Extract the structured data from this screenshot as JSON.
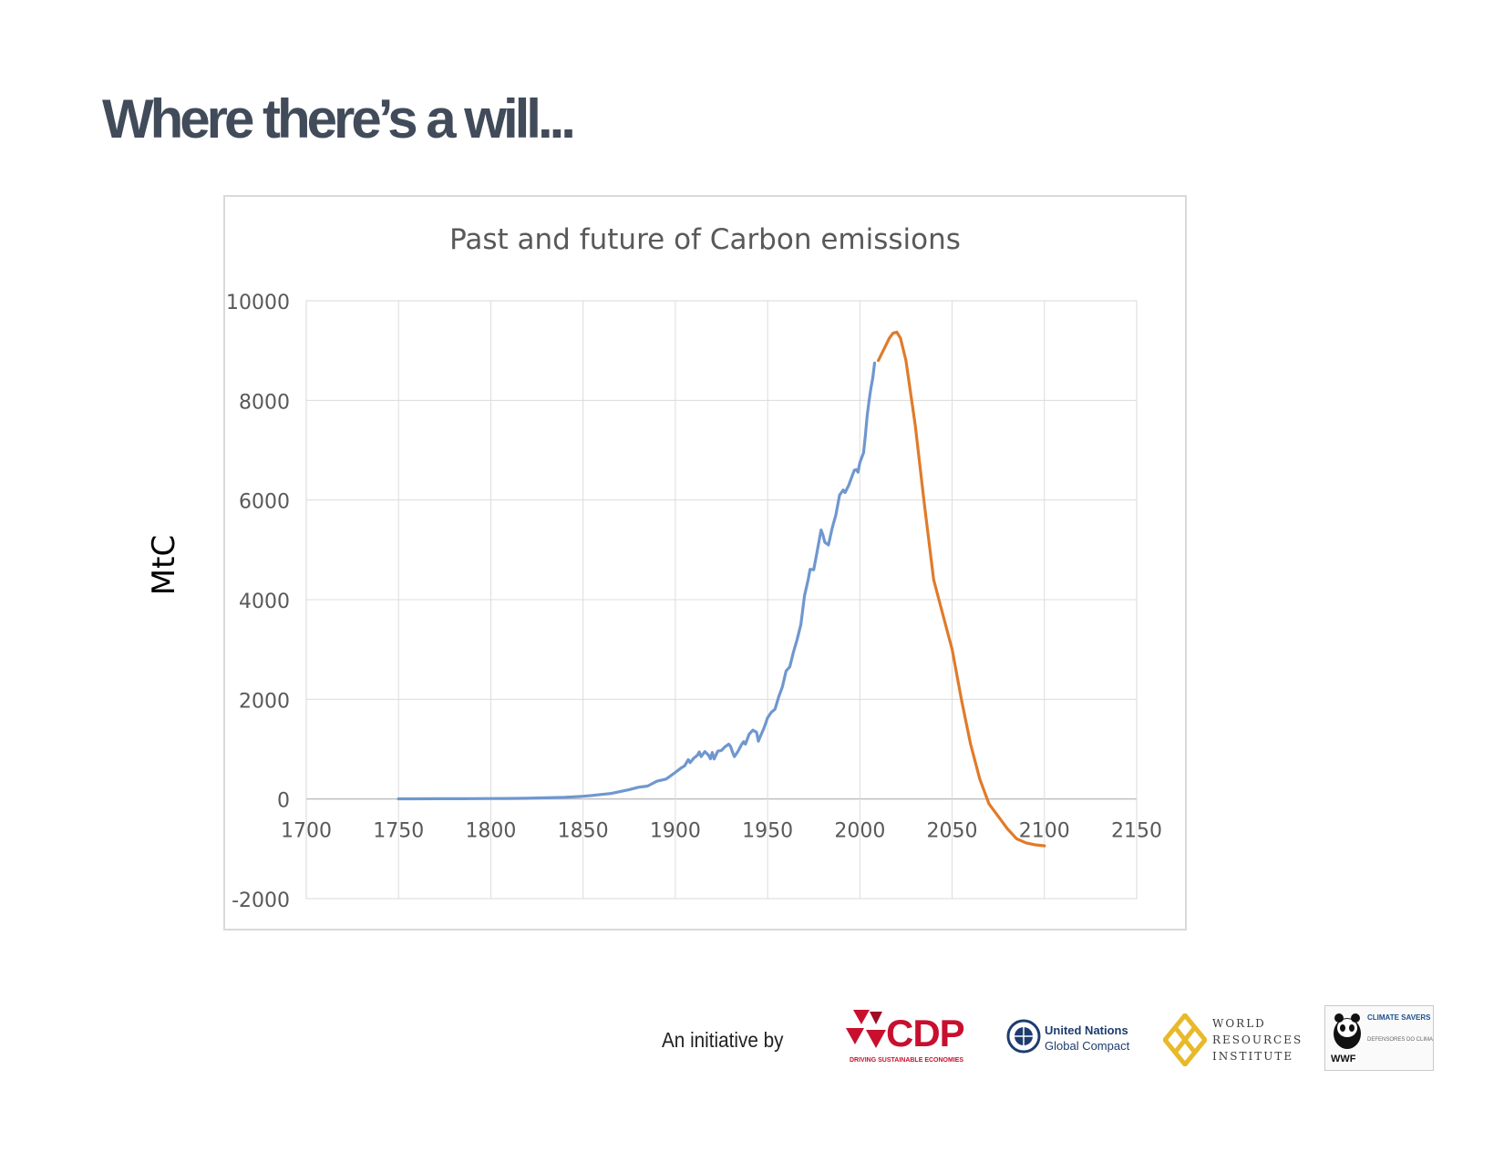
{
  "slide": {
    "title": "Where there’s a will...",
    "footer_label": "An initiative by"
  },
  "chart_data": {
    "type": "line",
    "title": "Past and future of Carbon emissions",
    "xlabel": "",
    "ylabel": "MtC",
    "xlim": [
      1700,
      2150
    ],
    "ylim": [
      -2000,
      10000
    ],
    "x_ticks": [
      1700,
      1750,
      1800,
      1850,
      1900,
      1950,
      2000,
      2050,
      2100,
      2150
    ],
    "y_ticks": [
      -2000,
      0,
      2000,
      4000,
      6000,
      8000,
      10000
    ],
    "grid": true,
    "legend": "none",
    "series": [
      {
        "color": "#6f97cf",
        "points": [
          [
            1750,
            3
          ],
          [
            1760,
            3
          ],
          [
            1770,
            4
          ],
          [
            1780,
            5
          ],
          [
            1790,
            7
          ],
          [
            1800,
            8
          ],
          [
            1810,
            10
          ],
          [
            1820,
            14
          ],
          [
            1830,
            24
          ],
          [
            1840,
            33
          ],
          [
            1850,
            54
          ],
          [
            1855,
            70
          ],
          [
            1860,
            91
          ],
          [
            1865,
            110
          ],
          [
            1870,
            147
          ],
          [
            1875,
            188
          ],
          [
            1880,
            236
          ],
          [
            1885,
            260
          ],
          [
            1890,
            356
          ],
          [
            1895,
            400
          ],
          [
            1900,
            534
          ],
          [
            1903,
            620
          ],
          [
            1905,
            663
          ],
          [
            1907,
            790
          ],
          [
            1908,
            730
          ],
          [
            1910,
            819
          ],
          [
            1912,
            880
          ],
          [
            1913,
            943
          ],
          [
            1914,
            850
          ],
          [
            1916,
            950
          ],
          [
            1918,
            880
          ],
          [
            1919,
            806
          ],
          [
            1920,
            932
          ],
          [
            1921,
            803
          ],
          [
            1923,
            960
          ],
          [
            1925,
            975
          ],
          [
            1927,
            1050
          ],
          [
            1929,
            1100
          ],
          [
            1930,
            1050
          ],
          [
            1931,
            940
          ],
          [
            1932,
            850
          ],
          [
            1934,
            960
          ],
          [
            1936,
            1100
          ],
          [
            1937,
            1150
          ],
          [
            1938,
            1100
          ],
          [
            1940,
            1300
          ],
          [
            1942,
            1380
          ],
          [
            1944,
            1340
          ],
          [
            1945,
            1160
          ],
          [
            1946,
            1250
          ],
          [
            1948,
            1420
          ],
          [
            1950,
            1630
          ],
          [
            1952,
            1740
          ],
          [
            1954,
            1800
          ],
          [
            1956,
            2050
          ],
          [
            1958,
            2250
          ],
          [
            1960,
            2570
          ],
          [
            1962,
            2650
          ],
          [
            1964,
            2950
          ],
          [
            1966,
            3200
          ],
          [
            1968,
            3500
          ],
          [
            1970,
            4080
          ],
          [
            1972,
            4400
          ],
          [
            1973,
            4610
          ],
          [
            1975,
            4600
          ],
          [
            1977,
            5000
          ],
          [
            1979,
            5400
          ],
          [
            1980,
            5300
          ],
          [
            1981,
            5150
          ],
          [
            1983,
            5100
          ],
          [
            1985,
            5440
          ],
          [
            1987,
            5700
          ],
          [
            1989,
            6100
          ],
          [
            1991,
            6200
          ],
          [
            1992,
            6150
          ],
          [
            1994,
            6300
          ],
          [
            1996,
            6500
          ],
          [
            1997,
            6600
          ],
          [
            1998,
            6610
          ],
          [
            1999,
            6560
          ],
          [
            2000,
            6750
          ],
          [
            2002,
            6950
          ],
          [
            2003,
            7300
          ],
          [
            2004,
            7700
          ],
          [
            2005,
            8000
          ],
          [
            2006,
            8250
          ],
          [
            2007,
            8450
          ],
          [
            2008,
            8750
          ]
        ]
      },
      {
        "color": "#e07b2a",
        "points": [
          [
            2010,
            8800
          ],
          [
            2012,
            8950
          ],
          [
            2014,
            9100
          ],
          [
            2016,
            9250
          ],
          [
            2018,
            9350
          ],
          [
            2020,
            9370
          ],
          [
            2022,
            9250
          ],
          [
            2025,
            8800
          ],
          [
            2030,
            7500
          ],
          [
            2035,
            5900
          ],
          [
            2040,
            4400
          ],
          [
            2045,
            3700
          ],
          [
            2050,
            3000
          ],
          [
            2055,
            2000
          ],
          [
            2060,
            1100
          ],
          [
            2065,
            400
          ],
          [
            2070,
            -100
          ],
          [
            2075,
            -350
          ],
          [
            2080,
            -600
          ],
          [
            2085,
            -800
          ],
          [
            2090,
            -880
          ],
          [
            2095,
            -920
          ],
          [
            2100,
            -940
          ]
        ]
      }
    ]
  },
  "logos": {
    "cdp": {
      "text": "CDP",
      "tagline": "DRIVING SUSTAINABLE ECONOMIES",
      "color": "#c8102e"
    },
    "ungc": {
      "line1": "United Nations",
      "line2": "Global Compact",
      "color": "#1d3c6e"
    },
    "wri": {
      "lines": [
        "WORLD",
        "RESOURCES",
        "INSTITUTE"
      ],
      "color": "#e8b92a"
    },
    "wwf": {
      "text": "WWF",
      "climate": "CLIMATE SAVERS",
      "sub1": "DEFENSORES DO CLIMA"
    }
  }
}
